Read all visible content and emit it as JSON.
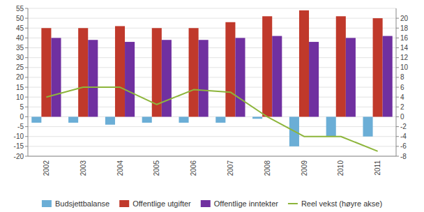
{
  "chart_data": {
    "type": "bar",
    "categories": [
      "2002",
      "2003",
      "2004",
      "2005",
      "2006",
      "2007",
      "2008",
      "2009",
      "2010",
      "2011"
    ],
    "series": [
      {
        "name": "Budsjettbalanse",
        "color": "#6baed6",
        "values": [
          -3,
          -3,
          -4,
          -3,
          -3,
          -3,
          -1,
          -15,
          -10,
          -10
        ]
      },
      {
        "name": "Offentlige utgifter",
        "color": "#c0392b",
        "values": [
          45,
          45,
          46,
          45,
          45,
          48,
          51,
          54,
          51,
          50
        ]
      },
      {
        "name": "Offentlige inntekter",
        "color": "#7030a0",
        "values": [
          40,
          39,
          38,
          39,
          39,
          40,
          41,
          38,
          40,
          41
        ]
      },
      {
        "name": "Reel vekst (høyre akse)",
        "color": "#8db53b",
        "type": "line",
        "axis": "y2",
        "values": [
          4,
          6,
          6,
          2.5,
          5.5,
          5,
          0,
          -4,
          -4,
          -7
        ]
      }
    ],
    "ylim": [
      -20,
      55
    ],
    "yticks": [
      -20,
      -15,
      -10,
      -5,
      0,
      5,
      10,
      15,
      20,
      25,
      30,
      35,
      40,
      45,
      50,
      55
    ],
    "y2lim": [
      -8,
      22
    ],
    "y2ticks": [
      -8,
      -6,
      -4,
      -2,
      0,
      2,
      4,
      6,
      8,
      10,
      12,
      14,
      16,
      18,
      20
    ],
    "grid": true,
    "legend": "bottom"
  }
}
